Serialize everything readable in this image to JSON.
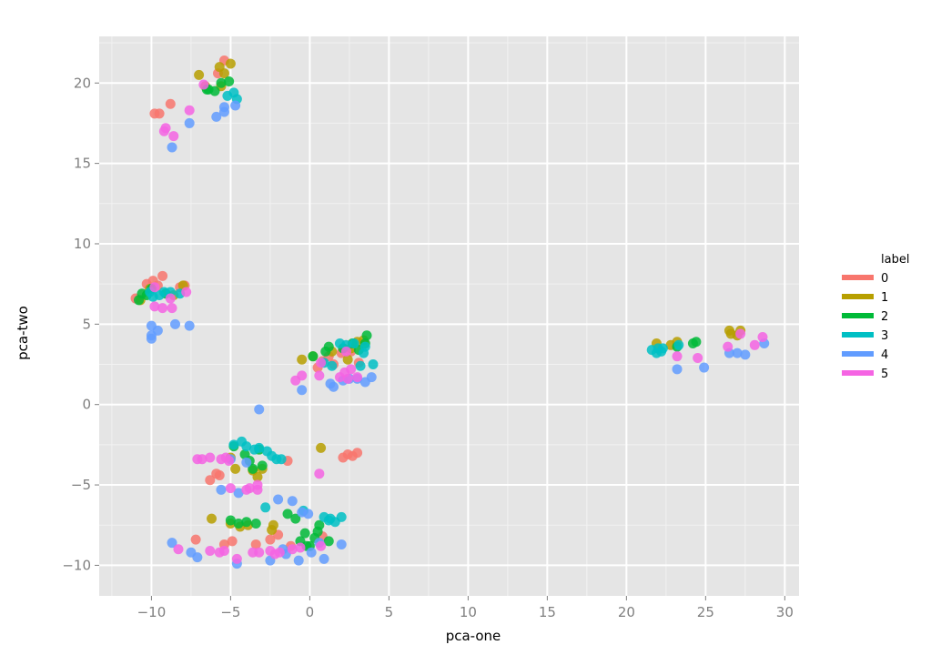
{
  "chart_data": {
    "type": "scatter",
    "xlabel": "pca-one",
    "ylabel": "pca-two",
    "xlim": [
      -13.3,
      30.9
    ],
    "ylim": [
      -11.9,
      22.9
    ],
    "x_ticks": [
      -10,
      -5,
      0,
      5,
      10,
      15,
      20,
      25,
      30
    ],
    "y_ticks": [
      -10,
      -5,
      0,
      5,
      10,
      15,
      20
    ],
    "x_tick_labels": [
      "−10",
      "−5",
      "0",
      "5",
      "10",
      "15",
      "20",
      "25",
      "30"
    ],
    "y_tick_labels": [
      "−10",
      "−5",
      "0",
      "5",
      "10",
      "15",
      "20"
    ],
    "grid": true,
    "legend_placement": "right",
    "legend_title": "label",
    "series": [
      {
        "name": "0",
        "color": "#f8766d",
        "points": [
          [
            -5.4,
            21.4
          ],
          [
            -5.8,
            20.6
          ],
          [
            -9.8,
            18.1
          ],
          [
            -9.5,
            18.1
          ],
          [
            -8.8,
            18.7
          ],
          [
            -10.3,
            7.5
          ],
          [
            -9.9,
            7.7
          ],
          [
            -9.3,
            8.0
          ],
          [
            -7.9,
            7.4
          ],
          [
            -8.2,
            7.3
          ],
          [
            -11.0,
            6.6
          ],
          [
            -9.6,
            7.4
          ],
          [
            0.5,
            2.3
          ],
          [
            1.2,
            3.0
          ],
          [
            2.0,
            3.2
          ],
          [
            2.6,
            3.3
          ],
          [
            3.1,
            2.6
          ],
          [
            0.8,
            2.7
          ],
          [
            1.5,
            2.5
          ],
          [
            -1.4,
            -3.5
          ],
          [
            2.1,
            -3.3
          ],
          [
            2.4,
            -3.1
          ],
          [
            2.7,
            -3.2
          ],
          [
            3.0,
            -3.0
          ],
          [
            -5.9,
            -4.3
          ],
          [
            -6.3,
            -4.7
          ],
          [
            -5.7,
            -4.4
          ],
          [
            -7.2,
            -8.4
          ],
          [
            -5.4,
            -8.7
          ],
          [
            -4.9,
            -8.5
          ],
          [
            -3.4,
            -8.7
          ],
          [
            -2.5,
            -8.4
          ],
          [
            -1.2,
            -8.8
          ],
          [
            -2.0,
            -8.1
          ],
          [
            0.8,
            -8.2
          ]
        ]
      },
      {
        "name": "1",
        "color": "#b79f00",
        "points": [
          [
            -7.0,
            20.5
          ],
          [
            -5.7,
            21.0
          ],
          [
            -5.0,
            21.2
          ],
          [
            -5.4,
            20.6
          ],
          [
            -5.6,
            19.8
          ],
          [
            -6.6,
            19.8
          ],
          [
            -10.7,
            6.5
          ],
          [
            -10.1,
            7.2
          ],
          [
            -8.6,
            6.8
          ],
          [
            -8.0,
            7.4
          ],
          [
            -0.5,
            2.8
          ],
          [
            0.2,
            3.0
          ],
          [
            1.4,
            3.3
          ],
          [
            2.4,
            2.8
          ],
          [
            3.0,
            3.9
          ],
          [
            3.4,
            4.0
          ],
          [
            2.6,
            3.5
          ],
          [
            0.7,
            -2.7
          ],
          [
            -5.0,
            -3.3
          ],
          [
            -4.7,
            -4.0
          ],
          [
            -3.6,
            -4.1
          ],
          [
            -3.3,
            -4.5
          ],
          [
            -3.0,
            -4.0
          ],
          [
            -6.2,
            -7.1
          ],
          [
            -5.0,
            -7.4
          ],
          [
            -4.4,
            -7.6
          ],
          [
            -3.9,
            -7.5
          ],
          [
            -2.4,
            -7.8
          ],
          [
            -2.3,
            -7.5
          ],
          [
            21.9,
            3.8
          ],
          [
            22.8,
            3.7
          ],
          [
            23.2,
            3.9
          ],
          [
            26.5,
            4.6
          ],
          [
            26.6,
            4.4
          ],
          [
            27.0,
            4.3
          ],
          [
            27.2,
            4.6
          ]
        ]
      },
      {
        "name": "2",
        "color": "#00ba38",
        "points": [
          [
            -6.5,
            19.6
          ],
          [
            -5.6,
            20.0
          ],
          [
            -5.1,
            20.1
          ],
          [
            -6.0,
            19.5
          ],
          [
            -6.4,
            19.6
          ],
          [
            -10.6,
            6.9
          ],
          [
            -10.3,
            6.8
          ],
          [
            -10.0,
            7.2
          ],
          [
            -9.1,
            6.9
          ],
          [
            -10.8,
            6.5
          ],
          [
            0.2,
            3.0
          ],
          [
            1.0,
            3.3
          ],
          [
            1.2,
            3.6
          ],
          [
            2.1,
            3.5
          ],
          [
            2.7,
            3.8
          ],
          [
            3.1,
            3.4
          ],
          [
            3.6,
            4.3
          ],
          [
            3.5,
            3.8
          ],
          [
            -4.8,
            -2.6
          ],
          [
            -4.1,
            -3.1
          ],
          [
            -3.8,
            -3.5
          ],
          [
            -3.2,
            -2.8
          ],
          [
            -3.6,
            -4.0
          ],
          [
            -3.0,
            -3.8
          ],
          [
            -5.0,
            -7.2
          ],
          [
            -4.5,
            -7.4
          ],
          [
            -4.0,
            -7.3
          ],
          [
            -3.4,
            -7.4
          ],
          [
            -1.4,
            -6.8
          ],
          [
            -0.9,
            -7.1
          ],
          [
            0.6,
            -7.5
          ],
          [
            0.5,
            -7.9
          ],
          [
            -0.3,
            -8.0
          ],
          [
            -0.6,
            -8.5
          ],
          [
            0.0,
            -8.8
          ],
          [
            0.3,
            -8.3
          ],
          [
            -0.2,
            -8.8
          ],
          [
            1.2,
            -8.5
          ],
          [
            24.2,
            3.8
          ],
          [
            24.4,
            3.9
          ],
          [
            23.2,
            3.6
          ]
        ]
      },
      {
        "name": "3",
        "color": "#00bfc4",
        "points": [
          [
            -4.8,
            19.4
          ],
          [
            -5.2,
            19.2
          ],
          [
            -4.6,
            19.0
          ],
          [
            -9.5,
            6.8
          ],
          [
            -9.2,
            7.0
          ],
          [
            -8.8,
            7.0
          ],
          [
            -9.9,
            6.7
          ],
          [
            -8.2,
            6.9
          ],
          [
            -10.1,
            7.0
          ],
          [
            0.9,
            2.6
          ],
          [
            1.4,
            2.4
          ],
          [
            1.9,
            3.8
          ],
          [
            2.3,
            3.7
          ],
          [
            2.8,
            3.8
          ],
          [
            3.4,
            3.2
          ],
          [
            3.5,
            3.6
          ],
          [
            4.0,
            2.5
          ],
          [
            3.2,
            2.4
          ],
          [
            -4.8,
            -2.5
          ],
          [
            -4.3,
            -2.3
          ],
          [
            -4.0,
            -2.6
          ],
          [
            -3.5,
            -2.8
          ],
          [
            -3.2,
            -2.7
          ],
          [
            -2.7,
            -2.9
          ],
          [
            -2.4,
            -3.2
          ],
          [
            -2.1,
            -3.4
          ],
          [
            -1.8,
            -3.4
          ],
          [
            -2.8,
            -6.4
          ],
          [
            -0.4,
            -6.6
          ],
          [
            0.9,
            -7.0
          ],
          [
            1.3,
            -7.1
          ],
          [
            1.6,
            -7.3
          ],
          [
            2.0,
            -7.0
          ],
          [
            1.2,
            -7.2
          ],
          [
            21.6,
            3.4
          ],
          [
            21.9,
            3.2
          ],
          [
            22.0,
            3.5
          ],
          [
            22.3,
            3.5
          ],
          [
            22.2,
            3.3
          ],
          [
            23.3,
            3.7
          ]
        ]
      },
      {
        "name": "4",
        "color": "#619cff",
        "points": [
          [
            -5.4,
            18.5
          ],
          [
            -5.4,
            18.2
          ],
          [
            -5.9,
            17.9
          ],
          [
            -4.7,
            18.6
          ],
          [
            -7.6,
            17.5
          ],
          [
            -8.7,
            16.0
          ],
          [
            -10.0,
            4.3
          ],
          [
            -10.0,
            4.1
          ],
          [
            -9.6,
            4.6
          ],
          [
            -10.0,
            4.9
          ],
          [
            -8.5,
            5.0
          ],
          [
            -7.6,
            4.9
          ],
          [
            1.3,
            1.3
          ],
          [
            1.5,
            1.1
          ],
          [
            2.1,
            1.5
          ],
          [
            2.5,
            1.6
          ],
          [
            3.0,
            1.6
          ],
          [
            3.5,
            1.4
          ],
          [
            3.9,
            1.7
          ],
          [
            -0.5,
            0.9
          ],
          [
            -3.2,
            -0.3
          ],
          [
            -5.0,
            -3.4
          ],
          [
            -4.0,
            -3.6
          ],
          [
            -5.6,
            -5.3
          ],
          [
            -4.5,
            -5.5
          ],
          [
            -2.0,
            -5.9
          ],
          [
            -1.1,
            -6.0
          ],
          [
            -0.5,
            -6.7
          ],
          [
            -0.1,
            -6.8
          ],
          [
            0.9,
            -9.6
          ],
          [
            2.0,
            -8.7
          ],
          [
            -1.7,
            -9.0
          ],
          [
            -8.7,
            -8.6
          ],
          [
            -7.5,
            -9.2
          ],
          [
            -7.1,
            -9.5
          ],
          [
            -4.6,
            -9.9
          ],
          [
            -2.5,
            -9.7
          ],
          [
            -1.5,
            -9.3
          ],
          [
            -0.7,
            -9.7
          ],
          [
            0.6,
            -8.6
          ],
          [
            0.1,
            -9.2
          ],
          [
            23.2,
            2.2
          ],
          [
            24.9,
            2.3
          ],
          [
            26.5,
            3.2
          ],
          [
            27.0,
            3.2
          ],
          [
            27.5,
            3.1
          ],
          [
            28.7,
            3.8
          ]
        ]
      },
      {
        "name": "5",
        "color": "#f564e3",
        "points": [
          [
            -6.7,
            19.9
          ],
          [
            -9.1,
            17.2
          ],
          [
            -9.2,
            17.0
          ],
          [
            -7.6,
            18.3
          ],
          [
            -8.6,
            16.7
          ],
          [
            -9.8,
            7.3
          ],
          [
            -7.8,
            7.0
          ],
          [
            -8.8,
            6.6
          ],
          [
            -9.8,
            6.1
          ],
          [
            -9.3,
            6.0
          ],
          [
            -8.7,
            6.0
          ],
          [
            -0.9,
            1.5
          ],
          [
            -0.5,
            1.8
          ],
          [
            0.6,
            1.8
          ],
          [
            0.7,
            2.6
          ],
          [
            1.9,
            1.7
          ],
          [
            2.2,
            2.0
          ],
          [
            2.6,
            2.2
          ],
          [
            2.4,
            1.6
          ],
          [
            3.0,
            1.7
          ],
          [
            2.3,
            3.3
          ],
          [
            -7.1,
            -3.4
          ],
          [
            -6.8,
            -3.4
          ],
          [
            -6.3,
            -3.3
          ],
          [
            -5.6,
            -3.4
          ],
          [
            -5.1,
            -3.5
          ],
          [
            -5.3,
            -3.3
          ],
          [
            0.6,
            -4.3
          ],
          [
            -5.0,
            -5.2
          ],
          [
            -4.0,
            -5.3
          ],
          [
            -3.8,
            -5.2
          ],
          [
            -3.3,
            -5.0
          ],
          [
            -3.3,
            -5.3
          ],
          [
            -8.3,
            -9.0
          ],
          [
            -6.3,
            -9.1
          ],
          [
            -5.7,
            -9.2
          ],
          [
            -5.4,
            -9.1
          ],
          [
            -4.6,
            -9.6
          ],
          [
            -3.6,
            -9.2
          ],
          [
            -3.2,
            -9.2
          ],
          [
            -2.5,
            -9.1
          ],
          [
            -2.2,
            -9.3
          ],
          [
            -1.9,
            -9.2
          ],
          [
            -1.1,
            -9.0
          ],
          [
            -0.6,
            -8.9
          ],
          [
            0.7,
            -8.8
          ],
          [
            23.2,
            3.0
          ],
          [
            24.5,
            2.9
          ],
          [
            26.4,
            3.6
          ],
          [
            27.2,
            4.4
          ],
          [
            28.1,
            3.7
          ],
          [
            28.6,
            4.2
          ]
        ]
      }
    ]
  }
}
